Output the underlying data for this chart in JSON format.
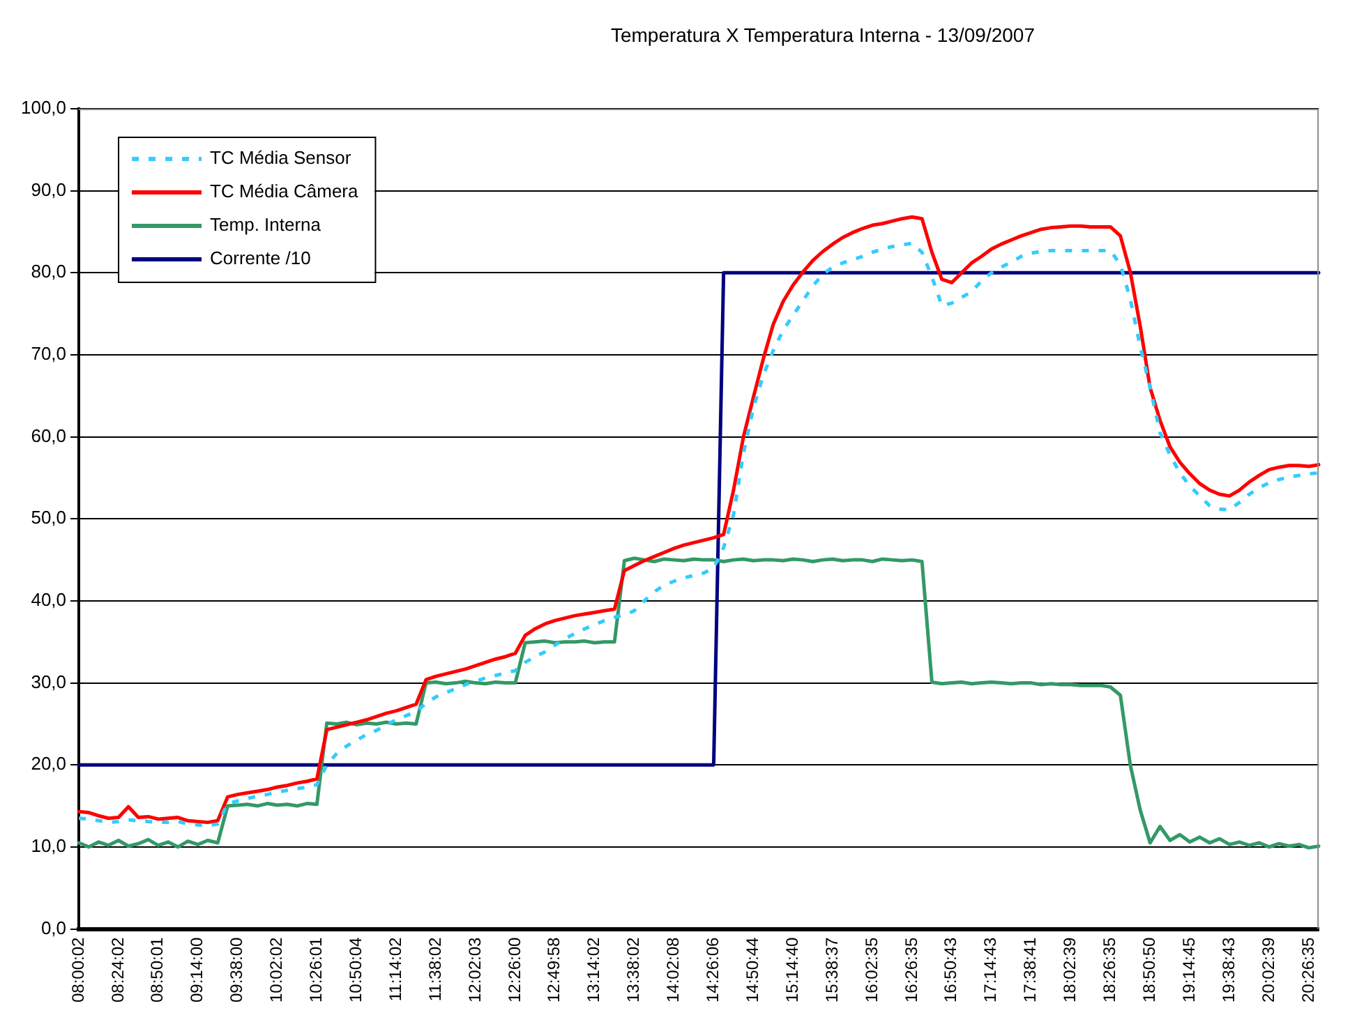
{
  "chart_data": {
    "type": "line",
    "title": "Temperatura X Temperatura Interna - 13/09/2007",
    "categories": [
      "08:00:02",
      null,
      null,
      null,
      "08:24:02",
      null,
      null,
      null,
      "08:50:01",
      null,
      null,
      null,
      "09:14:00",
      null,
      null,
      null,
      "09:38:00",
      null,
      null,
      null,
      "10:02:02",
      null,
      null,
      null,
      "10:26:01",
      null,
      null,
      null,
      "10:50:04",
      null,
      null,
      null,
      "11:14:02",
      null,
      null,
      null,
      "11:38:02",
      null,
      null,
      null,
      "12:02:03",
      null,
      null,
      null,
      "12:26:00",
      null,
      null,
      null,
      "12:49:58",
      null,
      null,
      null,
      "13:14:02",
      null,
      null,
      null,
      "13:38:02",
      null,
      null,
      null,
      "14:02:08",
      null,
      null,
      null,
      "14:26:06",
      null,
      null,
      null,
      "14:50:44",
      null,
      null,
      null,
      "15:14:40",
      null,
      null,
      null,
      "15:38:37",
      null,
      null,
      null,
      "16:02:35",
      null,
      null,
      null,
      "16:26:35",
      null,
      null,
      null,
      "16:50:43",
      null,
      null,
      null,
      "17:14:43",
      null,
      null,
      null,
      "17:38:41",
      null,
      null,
      null,
      "18:02:39",
      null,
      null,
      null,
      "18:26:35",
      null,
      null,
      null,
      "18:50:50",
      null,
      null,
      null,
      "19:14:45",
      null,
      null,
      null,
      "19:38:43",
      null,
      null,
      null,
      "20:02:39",
      null,
      null,
      null,
      "20:26:35",
      null
    ],
    "series": [
      {
        "name": "TC Média Sensor",
        "color": "#33ccff",
        "line_style": "dashed",
        "values": [
          13.5,
          13.4,
          13.2,
          13.0,
          13.1,
          13.3,
          13.2,
          13.1,
          13.0,
          13.0,
          13.1,
          12.8,
          12.7,
          12.6,
          12.8,
          15.3,
          15.6,
          15.9,
          16.2,
          16.4,
          16.7,
          16.9,
          17.1,
          17.3,
          17.6,
          20.0,
          21.4,
          22.3,
          23.0,
          23.7,
          24.2,
          24.9,
          25.5,
          26.0,
          26.5,
          27.5,
          28.3,
          28.8,
          29.3,
          29.8,
          30.2,
          30.6,
          30.9,
          31.2,
          31.5,
          32.5,
          33.2,
          33.8,
          34.6,
          35.4,
          36.0,
          36.6,
          37.1,
          37.6,
          38.0,
          38.3,
          38.8,
          40.0,
          41.1,
          41.9,
          42.4,
          42.8,
          43.1,
          43.4,
          44.0,
          46.5,
          50.5,
          58.0,
          63.5,
          67.5,
          70.5,
          73.0,
          74.8,
          76.6,
          78.4,
          79.8,
          80.7,
          81.2,
          81.6,
          82.0,
          82.5,
          82.9,
          83.2,
          83.4,
          83.6,
          82.5,
          79.5,
          76.0,
          76.3,
          77.0,
          77.7,
          79.0,
          80.0,
          80.7,
          81.3,
          82.0,
          82.4,
          82.6,
          82.7,
          82.7,
          82.7,
          82.7,
          82.7,
          82.7,
          82.7,
          81.0,
          76.8,
          71.0,
          66.0,
          60.5,
          57.8,
          55.6,
          54.0,
          52.8,
          51.6,
          51.2,
          51.1,
          52.0,
          53.0,
          53.8,
          54.4,
          54.8,
          55.1,
          55.3,
          55.5,
          55.6
        ]
      },
      {
        "name": "TC Média Câmera",
        "color": "#ff0000",
        "line_style": "solid",
        "values": [
          14.3,
          14.2,
          13.8,
          13.5,
          13.6,
          14.9,
          13.6,
          13.7,
          13.4,
          13.5,
          13.6,
          13.2,
          13.1,
          13.0,
          13.2,
          16.1,
          16.4,
          16.6,
          16.8,
          17.0,
          17.3,
          17.5,
          17.8,
          18.0,
          18.3,
          24.3,
          24.6,
          24.9,
          25.2,
          25.5,
          25.9,
          26.3,
          26.6,
          27.0,
          27.4,
          30.4,
          30.8,
          31.1,
          31.4,
          31.7,
          32.1,
          32.5,
          32.9,
          33.2,
          33.6,
          35.8,
          36.6,
          37.2,
          37.6,
          37.9,
          38.2,
          38.4,
          38.6,
          38.8,
          39.0,
          43.7,
          44.3,
          44.9,
          45.4,
          45.9,
          46.4,
          46.8,
          47.1,
          47.4,
          47.7,
          48.1,
          53.5,
          60.0,
          64.8,
          69.5,
          73.7,
          76.5,
          78.5,
          80.1,
          81.5,
          82.6,
          83.5,
          84.3,
          84.9,
          85.4,
          85.8,
          86.0,
          86.3,
          86.6,
          86.8,
          86.6,
          82.5,
          79.2,
          78.8,
          80.0,
          81.2,
          82.0,
          82.9,
          83.5,
          84.0,
          84.5,
          84.9,
          85.3,
          85.5,
          85.6,
          85.7,
          85.7,
          85.6,
          85.6,
          85.6,
          84.5,
          80.1,
          73.5,
          66.0,
          62.0,
          58.8,
          56.9,
          55.5,
          54.3,
          53.5,
          53.0,
          52.8,
          53.5,
          54.5,
          55.3,
          56.0,
          56.3,
          56.5,
          56.5,
          56.4,
          56.6
        ]
      },
      {
        "name": "Temp. Interna",
        "color": "#339966",
        "line_style": "solid",
        "values": [
          10.5,
          10.0,
          10.6,
          10.2,
          10.8,
          10.1,
          10.4,
          10.9,
          10.2,
          10.6,
          10.0,
          10.7,
          10.3,
          10.8,
          10.5,
          15.0,
          15.1,
          15.2,
          15.0,
          15.3,
          15.1,
          15.2,
          15.0,
          15.3,
          15.2,
          25.1,
          25.0,
          25.2,
          24.9,
          25.1,
          25.0,
          25.2,
          25.0,
          25.1,
          25.0,
          30.0,
          30.1,
          29.9,
          30.0,
          30.2,
          30.0,
          29.9,
          30.1,
          30.0,
          30.0,
          34.9,
          35.0,
          35.1,
          34.9,
          35.0,
          35.0,
          35.1,
          34.9,
          35.0,
          35.0,
          44.9,
          45.2,
          45.0,
          44.8,
          45.1,
          45.0,
          44.9,
          45.1,
          45.0,
          45.0,
          44.8,
          45.0,
          45.1,
          44.9,
          45.0,
          45.0,
          44.9,
          45.1,
          45.0,
          44.8,
          45.0,
          45.1,
          44.9,
          45.0,
          45.0,
          44.8,
          45.1,
          45.0,
          44.9,
          45.0,
          44.8,
          30.1,
          29.9,
          30.0,
          30.1,
          29.9,
          30.0,
          30.1,
          30.0,
          29.9,
          30.0,
          30.0,
          29.8,
          29.9,
          29.8,
          29.8,
          29.7,
          29.7,
          29.7,
          29.5,
          28.5,
          20.0,
          14.5,
          10.5,
          12.5,
          10.8,
          11.5,
          10.6,
          11.2,
          10.5,
          11.0,
          10.3,
          10.6,
          10.2,
          10.5,
          10.0,
          10.4,
          10.1,
          10.3,
          9.9,
          10.1
        ]
      },
      {
        "name": "Corrente /10",
        "color": "#000080",
        "line_style": "solid",
        "values": [
          20,
          20,
          20,
          20,
          20,
          20,
          20,
          20,
          20,
          20,
          20,
          20,
          20,
          20,
          20,
          20,
          20,
          20,
          20,
          20,
          20,
          20,
          20,
          20,
          20,
          20,
          20,
          20,
          20,
          20,
          20,
          20,
          20,
          20,
          20,
          20,
          20,
          20,
          20,
          20,
          20,
          20,
          20,
          20,
          20,
          20,
          20,
          20,
          20,
          20,
          20,
          20,
          20,
          20,
          20,
          20,
          20,
          20,
          20,
          20,
          20,
          20,
          20,
          20,
          20,
          80,
          80,
          80,
          80,
          80,
          80,
          80,
          80,
          80,
          80,
          80,
          80,
          80,
          80,
          80,
          80,
          80,
          80,
          80,
          80,
          80,
          80,
          80,
          80,
          80,
          80,
          80,
          80,
          80,
          80,
          80,
          80,
          80,
          80,
          80,
          80,
          80,
          80,
          80,
          80,
          80,
          80,
          80,
          80,
          80,
          80,
          80,
          80,
          80,
          80,
          80,
          80,
          80,
          80,
          80,
          80,
          80,
          80,
          80,
          80,
          80
        ]
      }
    ],
    "ylim": [
      0,
      100
    ],
    "yticks": [
      {
        "value": 0,
        "label": "0,0"
      },
      {
        "value": 10,
        "label": "10,0"
      },
      {
        "value": 20,
        "label": "20,0"
      },
      {
        "value": 30,
        "label": "30,0"
      },
      {
        "value": 40,
        "label": "40,0"
      },
      {
        "value": 50,
        "label": "50,0"
      },
      {
        "value": 60,
        "label": "60,0"
      },
      {
        "value": 70,
        "label": "70,0"
      },
      {
        "value": 80,
        "label": "80,0"
      },
      {
        "value": 90,
        "label": "90,0"
      },
      {
        "value": 100,
        "label": "100,0"
      }
    ],
    "grid": "y",
    "legend": "top left",
    "marker": "none"
  }
}
